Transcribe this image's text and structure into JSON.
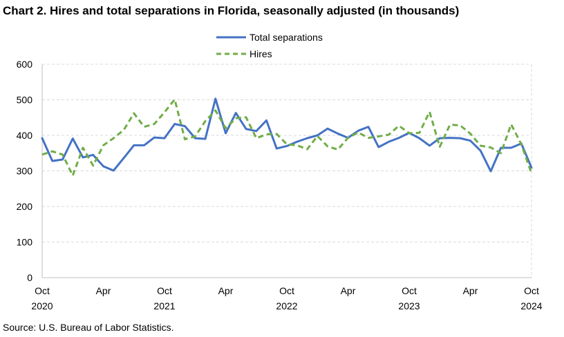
{
  "chart_data": {
    "type": "line",
    "title": "Chart 2. Hires and total separations in Florida, seasonally adjusted (in thousands)",
    "source": "Source: U.S. Bureau of Labor Statistics.",
    "xlabel": "",
    "ylabel": "",
    "ylim": [
      0,
      600
    ],
    "yticks": [
      "0",
      "100",
      "200",
      "300",
      "400",
      "500",
      "600"
    ],
    "grid": true,
    "legend_position": "top-center",
    "x_tick_labels": [
      {
        "index": 0,
        "month": "Oct",
        "year": "2020"
      },
      {
        "index": 6,
        "month": "Apr",
        "year": ""
      },
      {
        "index": 12,
        "month": "Oct",
        "year": "2021"
      },
      {
        "index": 18,
        "month": "Apr",
        "year": ""
      },
      {
        "index": 24,
        "month": "Oct",
        "year": "2022"
      },
      {
        "index": 30,
        "month": "Apr",
        "year": ""
      },
      {
        "index": 36,
        "month": "Oct",
        "year": "2023"
      },
      {
        "index": 42,
        "month": "Apr",
        "year": ""
      },
      {
        "index": 48,
        "month": "Oct",
        "year": "2024"
      }
    ],
    "series": [
      {
        "name": "Total separations",
        "color": "#4472C4",
        "style": "solid",
        "values": [
          392,
          328,
          332,
          391,
          338,
          345,
          313,
          301,
          336,
          372,
          372,
          394,
          392,
          432,
          426,
          392,
          390,
          503,
          406,
          463,
          418,
          412,
          442,
          363,
          370,
          382,
          392,
          400,
          419,
          405,
          393,
          413,
          424,
          367,
          382,
          393,
          407,
          392,
          371,
          392,
          393,
          392,
          385,
          357,
          299,
          365,
          365,
          377,
          309
        ]
      },
      {
        "name": "Hires",
        "color": "#70AD47",
        "style": "dashed",
        "values": [
          346,
          355,
          346,
          287,
          365,
          315,
          372,
          392,
          415,
          462,
          424,
          432,
          465,
          501,
          389,
          397,
          440,
          470,
          420,
          448,
          451,
          392,
          403,
          404,
          375,
          372,
          361,
          398,
          369,
          360,
          393,
          408,
          393,
          397,
          402,
          427,
          406,
          407,
          466,
          368,
          430,
          428,
          405,
          371,
          366,
          350,
          431,
          375,
          293
        ]
      }
    ]
  }
}
